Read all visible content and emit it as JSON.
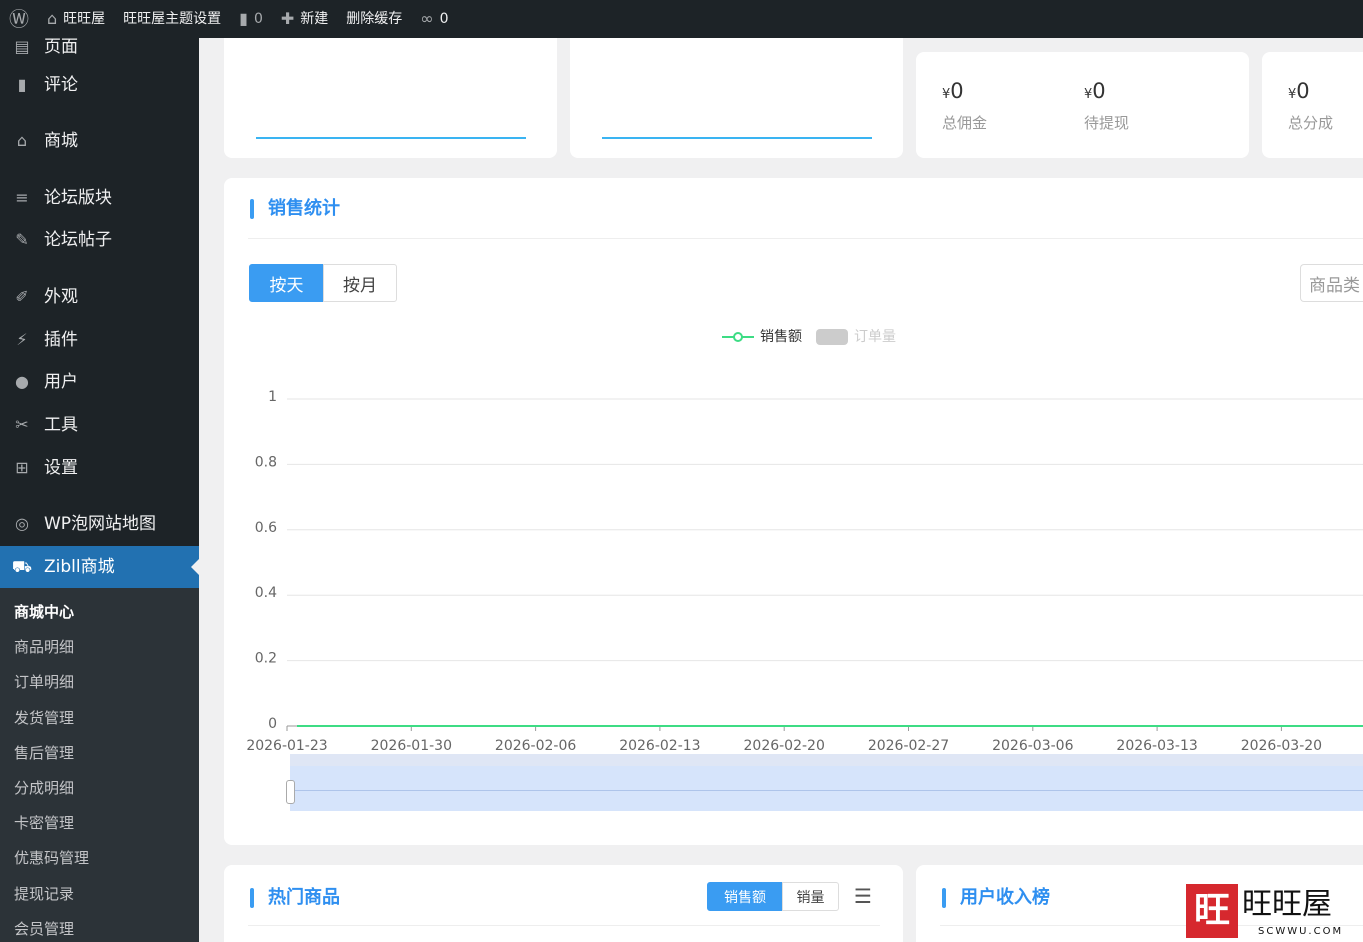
{
  "topbar": {
    "site": "旺旺屋",
    "theme_settings": "旺旺屋主题设置",
    "comments": "0",
    "new": "新建",
    "clear_cache": "删除缓存",
    "links": "0"
  },
  "sidebar": {
    "items": [
      {
        "label": "页面",
        "icon": "page-icon"
      },
      {
        "label": "评论",
        "icon": "comment-icon"
      },
      {
        "label": "商城",
        "icon": "store-icon"
      },
      {
        "label": "论坛版块",
        "icon": "forum-icon"
      },
      {
        "label": "论坛帖子",
        "icon": "post-icon"
      },
      {
        "label": "外观",
        "icon": "brush-icon"
      },
      {
        "label": "插件",
        "icon": "plugin-icon"
      },
      {
        "label": "用户",
        "icon": "user-icon"
      },
      {
        "label": "工具",
        "icon": "wrench-icon"
      },
      {
        "label": "设置",
        "icon": "settings-icon"
      },
      {
        "label": "WP泡网站地图",
        "icon": "sitemap-icon"
      },
      {
        "label": "Zibll商城",
        "icon": "cart-icon"
      }
    ],
    "submenu": [
      "商城中心",
      "商品明细",
      "订单明细",
      "发货管理",
      "售后管理",
      "分成明细",
      "卡密管理",
      "优惠码管理",
      "提现记录",
      "会员管理"
    ]
  },
  "stats": [
    {
      "currency": "¥",
      "value": "0",
      "label": "总佣金"
    },
    {
      "currency": "¥",
      "value": "0",
      "label": "待提现"
    },
    {
      "currency": "¥",
      "value": "0",
      "label": "总分成"
    }
  ],
  "sales": {
    "title": "销售统计",
    "tabs": [
      "按天",
      "按月"
    ],
    "category_select": "商品类",
    "legend": [
      "销售额",
      "订单量"
    ]
  },
  "chart_data": {
    "type": "line",
    "categories": [
      "2026-01-23",
      "2026-01-30",
      "2026-02-06",
      "2026-02-13",
      "2026-02-20",
      "2026-02-27",
      "2026-03-06",
      "2026-03-13",
      "2026-03-20"
    ],
    "series": [
      {
        "name": "销售额",
        "values": [
          0,
          0,
          0,
          0,
          0,
          0,
          0,
          0,
          0
        ]
      }
    ],
    "y_ticks": [
      "0",
      "0.2",
      "0.4",
      "0.6",
      "0.8",
      "1"
    ],
    "ylim": [
      0,
      1
    ],
    "grid": true,
    "legend": "top-center",
    "colors": {
      "销售额": "#3ddc84",
      "订单量": "#cccccc"
    }
  },
  "hot": {
    "title": "热门商品",
    "tabs": [
      "销售额",
      "销量"
    ]
  },
  "income": {
    "title": "用户收入榜"
  },
  "watermark": {
    "text": "旺旺屋",
    "url": "SCWWU.COM"
  }
}
